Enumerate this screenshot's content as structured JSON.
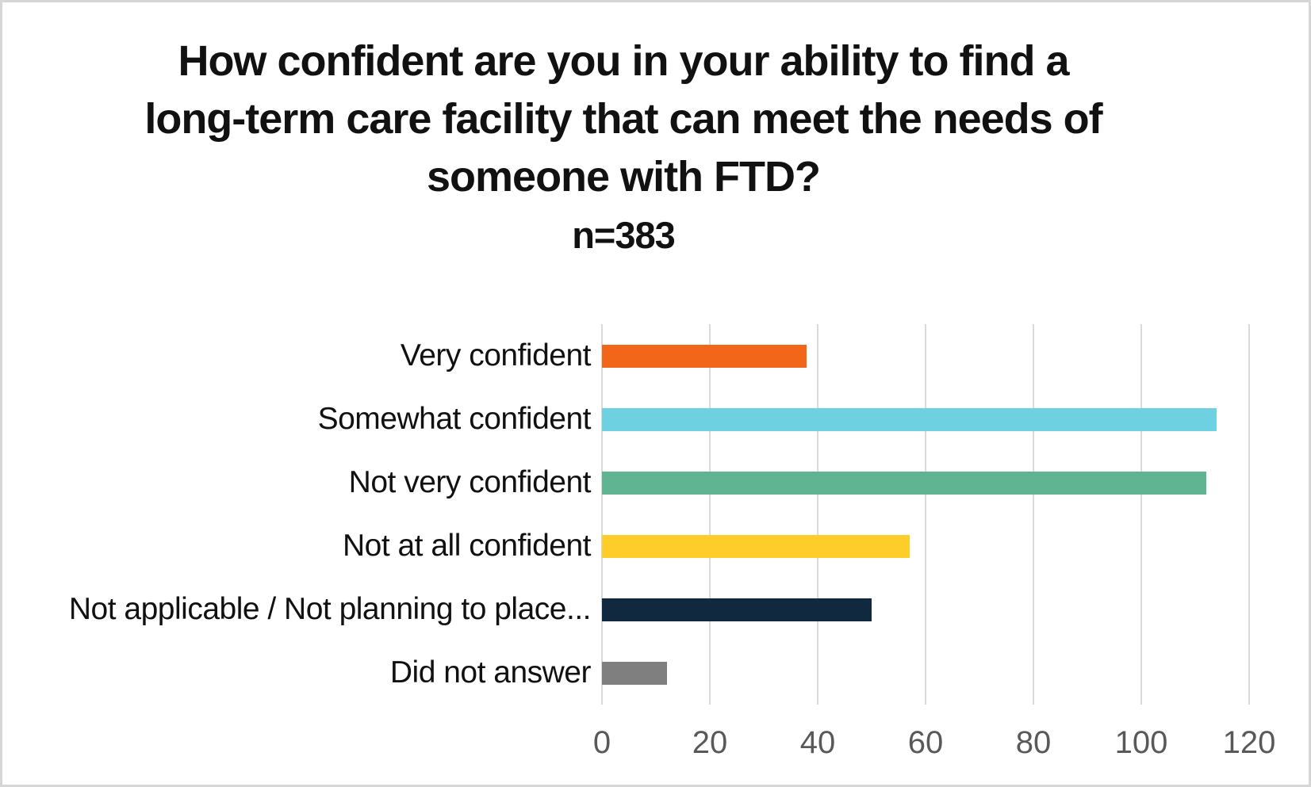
{
  "title": {
    "lines": [
      "How confident are you in your ability to find a",
      "long-term care facility that can meet the needs of",
      "someone with FTD?"
    ],
    "n_label": "n=383"
  },
  "chart_data": {
    "type": "bar",
    "orientation": "horizontal",
    "title": "How confident are you in your ability to find a long-term care facility that can meet the needs of someone with FTD?",
    "subtitle": "n=383",
    "sample_size": 383,
    "categories": [
      "Very confident",
      "Somewhat confident",
      "Not very confident",
      "Not at all confident",
      "Not applicable / Not planning to place...",
      "Did not answer"
    ],
    "values": [
      38,
      114,
      112,
      57,
      50,
      12
    ],
    "bar_colors": [
      "#f26619",
      "#6dd1e2",
      "#60b491",
      "#ffcd2a",
      "#11293f",
      "#7f7f7f"
    ],
    "xlim": [
      0,
      120
    ],
    "x_ticks": [
      0,
      20,
      40,
      60,
      80,
      100,
      120
    ],
    "xlabel": "",
    "ylabel": "",
    "grid": true,
    "legend": false,
    "gridline_color": "#d9d9d9",
    "axis_text_color": "#595959"
  }
}
